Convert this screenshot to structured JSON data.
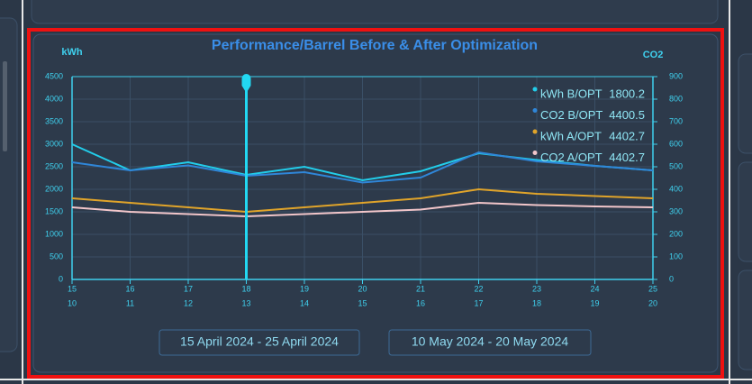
{
  "chart_data": {
    "type": "line",
    "title": "Performance/Barrel Before & After Optimization",
    "y_label": "kWh",
    "y2_label": "CO2",
    "categories": [
      "15",
      "16",
      "17",
      "18",
      "19",
      "20",
      "21",
      "22",
      "23",
      "24",
      "25"
    ],
    "categories2": [
      "10",
      "11",
      "12",
      "13",
      "14",
      "15",
      "16",
      "17",
      "18",
      "19",
      "20"
    ],
    "series": [
      {
        "name": "kWh B/OPT",
        "color": "#22cdea",
        "tooltip_value": 1800.2,
        "values": [
          3000,
          2420,
          2600,
          2320,
          2500,
          2200,
          2400,
          2800,
          2650,
          2520,
          2420
        ]
      },
      {
        "name": "CO2 B/OPT",
        "color": "#2f86d8",
        "axis": "y2",
        "tooltip_value": 4400.5,
        "values": [
          520,
          484,
          506,
          460,
          476,
          430,
          452,
          564,
          524,
          504,
          484
        ]
      },
      {
        "name": "kWh A/OPT",
        "color": "#e0a42a",
        "tooltip_value": 4402.7,
        "values": [
          1800,
          1700,
          1600,
          1500,
          1600,
          1700,
          1800,
          2000,
          1900,
          1850,
          1800
        ]
      },
      {
        "name": "CO2 A/OPT",
        "color": "#f2c6ca",
        "axis": "y2",
        "tooltip_value": 4402.7,
        "values": [
          320,
          300,
          290,
          280,
          290,
          300,
          310,
          340,
          330,
          324,
          320
        ]
      }
    ],
    "cursor_category": "18",
    "ylim": [
      0,
      4500
    ],
    "yticks": [
      0,
      500,
      1000,
      1500,
      2000,
      2500,
      3000,
      3500,
      4000,
      4500
    ],
    "y2lim": [
      0,
      900
    ],
    "y2ticks": [
      0,
      100,
      200,
      300,
      400,
      500,
      600,
      700,
      800,
      900
    ],
    "grid": true,
    "date_ranges": [
      "15 April 2024 - 25 April 2024",
      "10 May 2024 - 20 May 2024"
    ]
  }
}
